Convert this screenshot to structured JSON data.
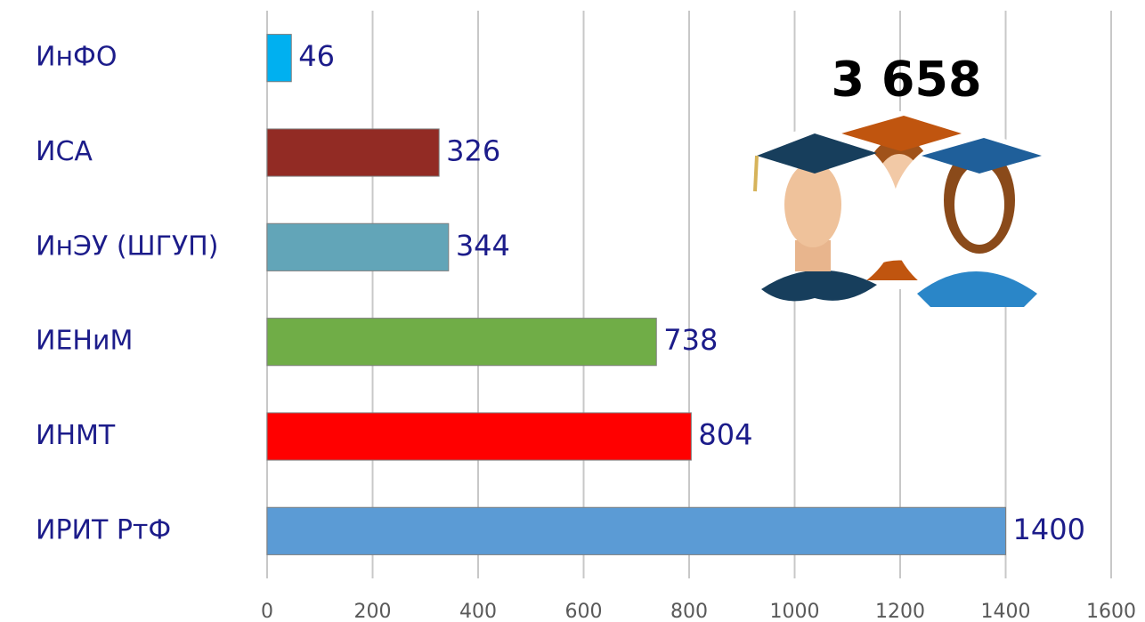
{
  "chart_data": {
    "type": "bar",
    "orientation": "horizontal",
    "annotation": "3 658",
    "categories": [
      "ИнФО",
      "ИСА",
      "ИнЭУ (ШГУП)",
      "ИЕНиМ",
      "ИНМТ",
      "ИРИТ РтФ"
    ],
    "values": [
      46,
      326,
      344,
      738,
      804,
      1400
    ],
    "colors": [
      "#00b0f0",
      "#922b24",
      "#62a5b8",
      "#70ad47",
      "#ff0000",
      "#5b9bd5"
    ],
    "xlim": [
      0,
      1600
    ],
    "xticks": [
      0,
      200,
      400,
      600,
      800,
      1000,
      1200,
      1400,
      1600
    ],
    "grid": true
  }
}
